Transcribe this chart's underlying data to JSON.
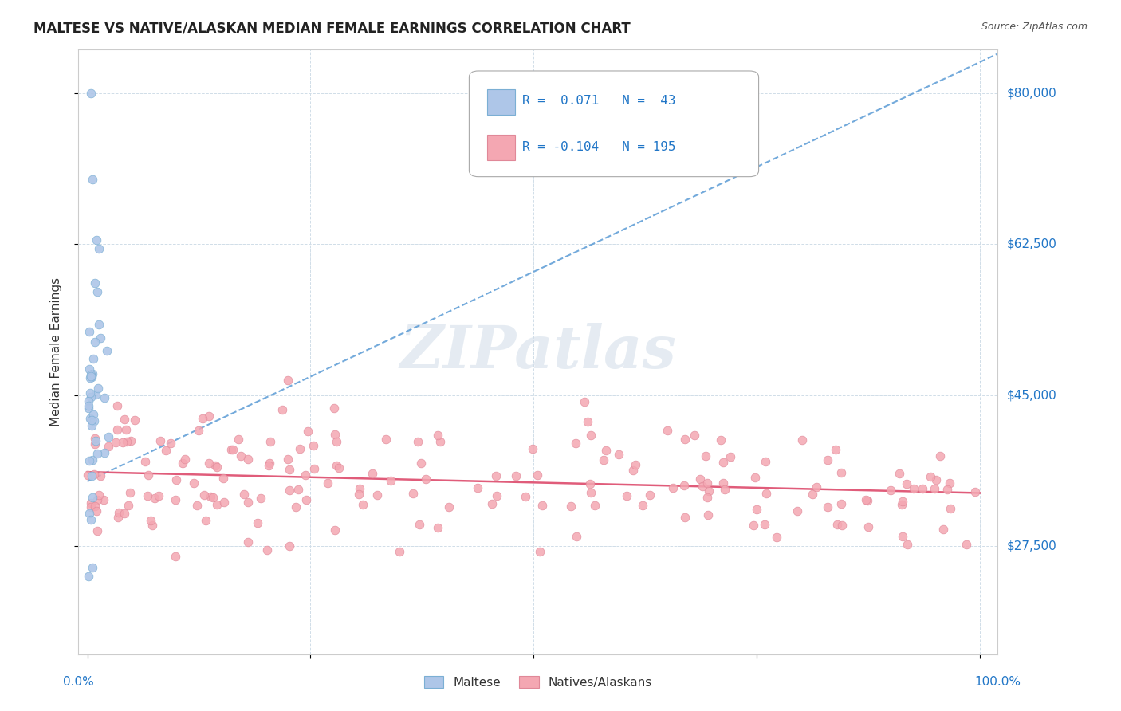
{
  "title": "MALTESE VS NATIVE/ALASKAN MEDIAN FEMALE EARNINGS CORRELATION CHART",
  "source": "Source: ZipAtlas.com",
  "ylabel": "Median Female Earnings",
  "yticks": [
    27500,
    45000,
    62500,
    80000
  ],
  "ytick_labels": [
    "$27,500",
    "$45,000",
    "$62,500",
    "$80,000"
  ],
  "y_min": 15000,
  "y_max": 85000,
  "watermark": "ZIPatlas",
  "maltese_color": "#aec6e8",
  "maltese_edge": "#7bafd4",
  "natives_color": "#f4a7b2",
  "natives_edge": "#e08898",
  "trendline_blue_color": "#5b9bd5",
  "trendline_pink_color": "#e05c7a",
  "background_color": "#ffffff",
  "grid_color": "#d0dde8",
  "title_color": "#222222",
  "source_color": "#555555",
  "label_blue_color": "#2176c7",
  "watermark_color": "#d0dce8",
  "blue_seed": 7,
  "pink_seed": 13
}
